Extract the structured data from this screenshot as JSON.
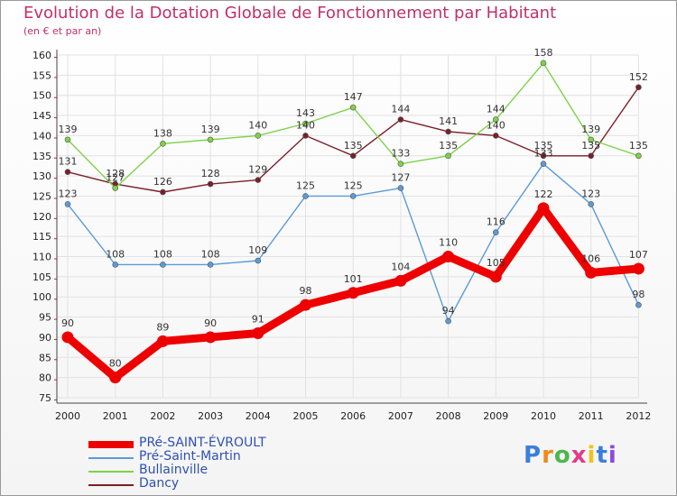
{
  "chart_data": {
    "type": "line",
    "title": "Evolution de la Dotation Globale de Fonctionnement par Habitant",
    "subtitle": "(en € et par an)",
    "x": [
      "2000",
      "2001",
      "2002",
      "2003",
      "2004",
      "2005",
      "2006",
      "2007",
      "2008",
      "2009",
      "2010",
      "2011",
      "2012"
    ],
    "ylim": [
      75,
      160
    ],
    "yticks": [
      75,
      80,
      85,
      90,
      95,
      100,
      105,
      110,
      115,
      120,
      125,
      130,
      135,
      140,
      145,
      150,
      155,
      160
    ],
    "grid": true,
    "series": [
      {
        "name": "PRé-SAINT-ÉVROULT",
        "color": "#ee0000",
        "width": "thick",
        "values": [
          90,
          80,
          89,
          90,
          91,
          98,
          101,
          104,
          110,
          105,
          122,
          106,
          107
        ]
      },
      {
        "name": "Pré-Saint-Martin",
        "color": "#5b9bd5",
        "width": "thin",
        "values": [
          123,
          108,
          108,
          108,
          109,
          125,
          125,
          127,
          94,
          116,
          133,
          123,
          98
        ]
      },
      {
        "name": "Bullainville",
        "color": "#7ed24a",
        "width": "thin",
        "values": [
          139,
          127,
          138,
          139,
          140,
          143,
          147,
          133,
          135,
          144,
          158,
          139,
          135
        ]
      },
      {
        "name": "Dancy",
        "color": "#7a1f28",
        "width": "thin",
        "values": [
          131,
          128,
          126,
          128,
          129,
          140,
          135,
          144,
          141,
          140,
          135,
          135,
          152
        ]
      }
    ]
  },
  "legend": {
    "items": [
      {
        "label": "PRé-SAINT-ÉVROULT",
        "color": "#ee0000"
      },
      {
        "label": "Pré-Saint-Martin",
        "color": "#5b9bd5"
      },
      {
        "label": "Bullainville",
        "color": "#7ed24a"
      },
      {
        "label": "Dancy",
        "color": "#7a1f28"
      }
    ]
  },
  "logo": {
    "letters": [
      "P",
      "r",
      "o",
      "x",
      "i",
      "t",
      "i"
    ],
    "colors": [
      "#3a7fd8",
      "#f08a1c",
      "#4bb84b",
      "#e03c8a",
      "#f0c21c",
      "#3a7fd8",
      "#8b4bd8"
    ]
  }
}
